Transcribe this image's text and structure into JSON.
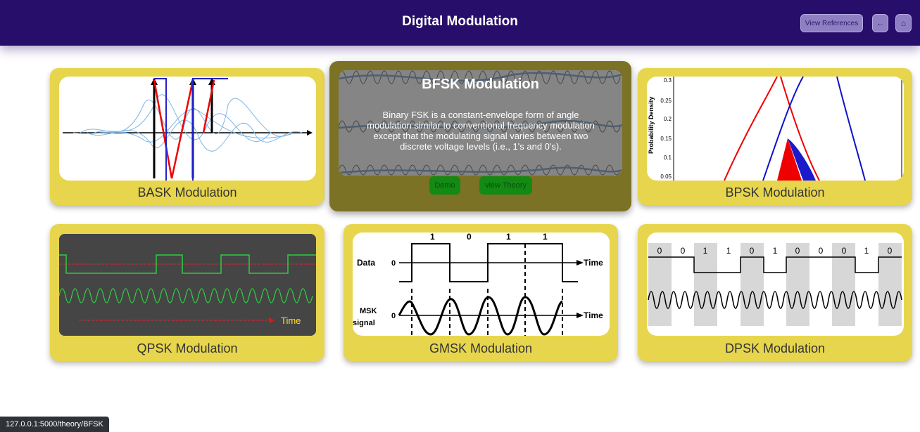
{
  "header": {
    "title": "Digital Modulation",
    "view_references_label": "View References",
    "back_icon": "←",
    "home_icon": "⌂"
  },
  "cards": {
    "bask": {
      "label": "BASK Modulation"
    },
    "bfsk": {
      "title": "BFSK Modulation",
      "description": "Binary FSK is a constant-envelope form of angle modulation similar to conventional frequency modulation except that the modulating signal varies between two discrete voltage levels (i.e., 1's and 0's).",
      "demo_label": "Demo",
      "theory_label": "view Theory"
    },
    "bpsk": {
      "label": "BPSK Modulation",
      "ylabel": "Probability Density",
      "yticks": [
        "0.3",
        "0.25",
        "0.2",
        "0.15",
        "0.1",
        "0.05"
      ]
    },
    "qpsk": {
      "label": "QPSK Modulation",
      "time_label": "Time"
    },
    "gmsk": {
      "label": "GMSK Modulation",
      "data_label": "Data",
      "msk_label_1": "MSK",
      "msk_label_2": "signal",
      "zero_1": "0",
      "zero_2": "0",
      "time_1": "Time",
      "time_2": "Time",
      "bits": [
        "1",
        "0",
        "1",
        "1"
      ]
    },
    "dpsk": {
      "label": "DPSK Modulation",
      "bits": [
        "0",
        "0",
        "1",
        "1",
        "0",
        "1",
        "0",
        "0",
        "0",
        "1",
        "0"
      ]
    }
  },
  "status_bar": {
    "url": "127.0.0.1:5000/theory/BFSK"
  },
  "colors": {
    "header_bg": "#280e6b",
    "card_bg": "#e7d64d",
    "overlay_bg": "#7b7226",
    "button_green": "#138a14"
  }
}
